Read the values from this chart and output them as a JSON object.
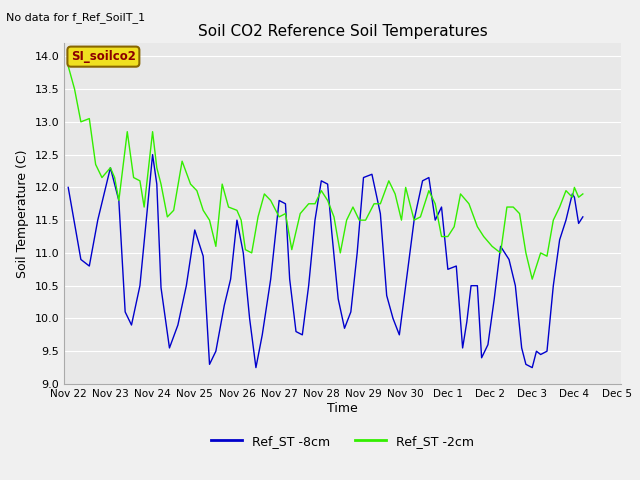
{
  "title": "Soil CO2 Reference Soil Temperatures",
  "subtitle": "No data for f_Ref_SoilT_1",
  "ylabel": "Soil Temperature (C)",
  "xlabel": "Time",
  "ylim": [
    9.0,
    14.2
  ],
  "yticks": [
    9.0,
    9.5,
    10.0,
    10.5,
    11.0,
    11.5,
    12.0,
    12.5,
    13.0,
    13.5,
    14.0
  ],
  "fig_bg_color": "#f0f0f0",
  "plot_bg_color": "#e8e8e8",
  "blue_color": "#0000cc",
  "green_color": "#33ee00",
  "legend_label_blue": "Ref_ST -8cm",
  "legend_label_green": "Ref_ST -2cm",
  "site_label": "SI_soilco2",
  "x_tick_labels": [
    "Nov 22",
    "Nov 23",
    "Nov 24",
    "Nov 25",
    "Nov 26",
    "Nov 27",
    "Nov 28",
    "Nov 29",
    "Nov 30",
    "Dec 1",
    "Dec 2",
    "Dec 3",
    "Dec 4",
    "Dec 5"
  ],
  "blue_data": [
    [
      0.0,
      12.0
    ],
    [
      0.3,
      10.9
    ],
    [
      0.5,
      10.8
    ],
    [
      0.7,
      11.5
    ],
    [
      1.0,
      12.3
    ],
    [
      1.2,
      11.8
    ],
    [
      1.35,
      10.1
    ],
    [
      1.5,
      9.9
    ],
    [
      1.7,
      10.5
    ],
    [
      2.0,
      12.5
    ],
    [
      2.1,
      12.05
    ],
    [
      2.2,
      10.47
    ],
    [
      2.4,
      9.55
    ],
    [
      2.6,
      9.9
    ],
    [
      2.8,
      10.5
    ],
    [
      3.0,
      11.35
    ],
    [
      3.2,
      10.95
    ],
    [
      3.35,
      9.3
    ],
    [
      3.5,
      9.5
    ],
    [
      3.7,
      10.2
    ],
    [
      3.85,
      10.6
    ],
    [
      4.0,
      11.5
    ],
    [
      4.15,
      11.0
    ],
    [
      4.3,
      10.0
    ],
    [
      4.45,
      9.25
    ],
    [
      4.6,
      9.75
    ],
    [
      4.8,
      10.6
    ],
    [
      5.0,
      11.8
    ],
    [
      5.15,
      11.75
    ],
    [
      5.25,
      10.6
    ],
    [
      5.4,
      9.8
    ],
    [
      5.55,
      9.75
    ],
    [
      5.7,
      10.5
    ],
    [
      5.85,
      11.5
    ],
    [
      6.0,
      12.1
    ],
    [
      6.15,
      12.05
    ],
    [
      6.25,
      11.3
    ],
    [
      6.4,
      10.3
    ],
    [
      6.55,
      9.85
    ],
    [
      6.7,
      10.1
    ],
    [
      6.85,
      11.0
    ],
    [
      7.0,
      12.15
    ],
    [
      7.2,
      12.2
    ],
    [
      7.4,
      11.6
    ],
    [
      7.55,
      10.35
    ],
    [
      7.7,
      10.0
    ],
    [
      7.85,
      9.75
    ],
    [
      8.0,
      10.5
    ],
    [
      8.2,
      11.5
    ],
    [
      8.4,
      12.1
    ],
    [
      8.55,
      12.15
    ],
    [
      8.7,
      11.5
    ],
    [
      8.85,
      11.7
    ],
    [
      9.0,
      10.75
    ],
    [
      9.2,
      10.8
    ],
    [
      9.35,
      9.55
    ],
    [
      9.45,
      9.95
    ],
    [
      9.55,
      10.5
    ],
    [
      9.7,
      10.5
    ],
    [
      9.8,
      9.4
    ],
    [
      9.95,
      9.6
    ],
    [
      10.1,
      10.3
    ],
    [
      10.25,
      11.1
    ],
    [
      10.45,
      10.9
    ],
    [
      10.6,
      10.5
    ],
    [
      10.75,
      9.55
    ],
    [
      10.85,
      9.3
    ],
    [
      11.0,
      9.25
    ],
    [
      11.1,
      9.5
    ],
    [
      11.2,
      9.45
    ],
    [
      11.35,
      9.5
    ],
    [
      11.5,
      10.5
    ],
    [
      11.65,
      11.2
    ],
    [
      11.8,
      11.5
    ],
    [
      11.95,
      11.9
    ],
    [
      12.0,
      11.85
    ],
    [
      12.1,
      11.45
    ],
    [
      12.2,
      11.55
    ]
  ],
  "green_data": [
    [
      0.0,
      13.85
    ],
    [
      0.15,
      13.5
    ],
    [
      0.3,
      13.0
    ],
    [
      0.5,
      13.05
    ],
    [
      0.65,
      12.35
    ],
    [
      0.8,
      12.15
    ],
    [
      1.0,
      12.3
    ],
    [
      1.1,
      12.15
    ],
    [
      1.2,
      11.8
    ],
    [
      1.4,
      12.85
    ],
    [
      1.55,
      12.15
    ],
    [
      1.7,
      12.1
    ],
    [
      1.8,
      11.7
    ],
    [
      2.0,
      12.85
    ],
    [
      2.1,
      12.3
    ],
    [
      2.2,
      12.05
    ],
    [
      2.35,
      11.55
    ],
    [
      2.5,
      11.65
    ],
    [
      2.7,
      12.4
    ],
    [
      2.9,
      12.05
    ],
    [
      3.05,
      11.95
    ],
    [
      3.2,
      11.65
    ],
    [
      3.35,
      11.5
    ],
    [
      3.5,
      11.1
    ],
    [
      3.65,
      12.05
    ],
    [
      3.8,
      11.7
    ],
    [
      4.0,
      11.65
    ],
    [
      4.1,
      11.5
    ],
    [
      4.2,
      11.05
    ],
    [
      4.35,
      11.0
    ],
    [
      4.5,
      11.55
    ],
    [
      4.65,
      11.9
    ],
    [
      4.8,
      11.8
    ],
    [
      5.0,
      11.55
    ],
    [
      5.15,
      11.6
    ],
    [
      5.3,
      11.05
    ],
    [
      5.5,
      11.6
    ],
    [
      5.7,
      11.75
    ],
    [
      5.85,
      11.75
    ],
    [
      6.0,
      11.95
    ],
    [
      6.15,
      11.8
    ],
    [
      6.3,
      11.55
    ],
    [
      6.45,
      11.0
    ],
    [
      6.6,
      11.5
    ],
    [
      6.75,
      11.7
    ],
    [
      6.9,
      11.5
    ],
    [
      7.05,
      11.5
    ],
    [
      7.25,
      11.75
    ],
    [
      7.4,
      11.75
    ],
    [
      7.6,
      12.1
    ],
    [
      7.75,
      11.9
    ],
    [
      7.9,
      11.5
    ],
    [
      8.0,
      12.0
    ],
    [
      8.2,
      11.5
    ],
    [
      8.35,
      11.55
    ],
    [
      8.55,
      11.95
    ],
    [
      8.7,
      11.75
    ],
    [
      8.85,
      11.25
    ],
    [
      9.0,
      11.25
    ],
    [
      9.15,
      11.4
    ],
    [
      9.3,
      11.9
    ],
    [
      9.5,
      11.75
    ],
    [
      9.7,
      11.4
    ],
    [
      9.85,
      11.25
    ],
    [
      10.05,
      11.1
    ],
    [
      10.25,
      11.0
    ],
    [
      10.4,
      11.7
    ],
    [
      10.55,
      11.7
    ],
    [
      10.7,
      11.6
    ],
    [
      10.85,
      11.0
    ],
    [
      11.0,
      10.6
    ],
    [
      11.2,
      11.0
    ],
    [
      11.35,
      10.95
    ],
    [
      11.5,
      11.5
    ],
    [
      11.65,
      11.7
    ],
    [
      11.8,
      11.95
    ],
    [
      11.95,
      11.85
    ],
    [
      12.0,
      12.0
    ],
    [
      12.1,
      11.85
    ],
    [
      12.2,
      11.9
    ]
  ]
}
